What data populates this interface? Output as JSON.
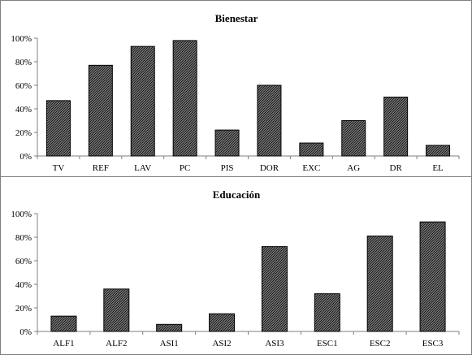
{
  "chart_data": [
    {
      "type": "bar",
      "title": "Bienestar",
      "xlabel": "",
      "ylabel": "",
      "categories": [
        "TV",
        "REF",
        "LAV",
        "PC",
        "PIS",
        "DOR",
        "EXC",
        "AG",
        "DR",
        "EL"
      ],
      "values": [
        47,
        77,
        93,
        98,
        22,
        60,
        11,
        30,
        50,
        9
      ],
      "ylim": [
        0,
        100
      ],
      "y_ticks": [
        "0%",
        "20%",
        "40%",
        "60%",
        "80%",
        "100%"
      ],
      "grid": false,
      "legend": "none",
      "bar_color": "#404040"
    },
    {
      "type": "bar",
      "title": "Educación",
      "xlabel": "",
      "ylabel": "",
      "categories": [
        "ALF1",
        "ALF2",
        "ASI1",
        "ASI2",
        "ASI3",
        "ESC1",
        "ESC2",
        "ESC3"
      ],
      "values": [
        13,
        36,
        6,
        15,
        72,
        32,
        81,
        93
      ],
      "ylim": [
        0,
        100
      ],
      "y_ticks": [
        "0%",
        "20%",
        "40%",
        "60%",
        "80%",
        "100%"
      ],
      "grid": false,
      "legend": "none",
      "bar_color": "#404040"
    }
  ]
}
